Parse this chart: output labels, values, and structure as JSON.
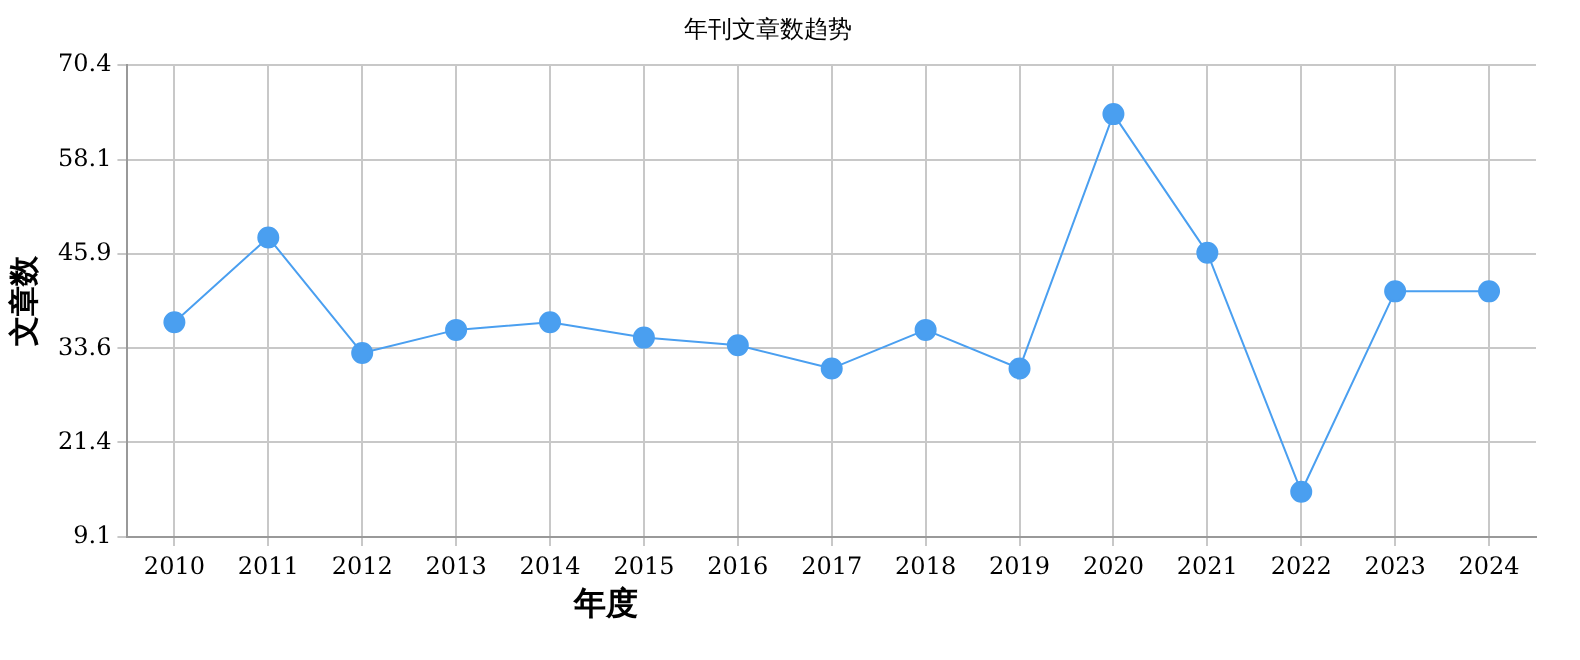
{
  "chart_data": {
    "type": "line",
    "title": "年刊文章数趋势",
    "xlabel": "年度",
    "ylabel": "文章数",
    "categories": [
      "2010",
      "2011",
      "2012",
      "2013",
      "2014",
      "2015",
      "2016",
      "2017",
      "2018",
      "2019",
      "2020",
      "2021",
      "2022",
      "2023",
      "2024"
    ],
    "series": [
      {
        "color": "#4a9ff0",
        "values": [
          37,
          48,
          33,
          36,
          37,
          35,
          34,
          31,
          36,
          31,
          64,
          46,
          15,
          41,
          41
        ]
      }
    ],
    "ylim": [
      9.1,
      70.4
    ],
    "yticks": [
      9.1,
      21.4,
      33.6,
      45.9,
      58.1,
      70.4
    ],
    "grid": true,
    "legend": false,
    "marker": "circle",
    "line_style": "solid"
  }
}
